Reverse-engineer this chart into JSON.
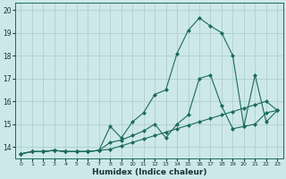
{
  "xlabel": "Humidex (Indice chaleur)",
  "background_color": "#cde8e8",
  "line_color": "#1a6b5a",
  "grid_color": "#b0d0d0",
  "xlim": [
    -0.5,
    23.5
  ],
  "ylim": [
    13.5,
    20.3
  ],
  "xticks": [
    0,
    1,
    2,
    3,
    4,
    5,
    6,
    7,
    8,
    9,
    10,
    11,
    12,
    13,
    14,
    15,
    16,
    17,
    18,
    19,
    20,
    21,
    22,
    23
  ],
  "yticks": [
    14,
    15,
    16,
    17,
    18,
    19,
    20
  ],
  "line1_x": [
    0,
    1,
    2,
    3,
    4,
    5,
    6,
    7,
    8,
    9,
    10,
    11,
    12,
    13,
    14,
    15,
    16,
    17,
    18,
    19,
    20,
    21,
    22,
    23
  ],
  "line1_y": [
    13.7,
    13.8,
    13.8,
    13.85,
    13.8,
    13.8,
    13.8,
    13.85,
    14.9,
    14.4,
    15.1,
    15.5,
    16.3,
    16.5,
    18.1,
    19.1,
    19.65,
    19.3,
    19.0,
    18.0,
    14.9,
    15.0,
    15.5,
    15.6
  ],
  "line2_x": [
    0,
    1,
    2,
    3,
    4,
    5,
    6,
    7,
    8,
    9,
    10,
    11,
    12,
    13,
    14,
    15,
    16,
    17,
    18,
    19,
    20,
    21,
    22,
    23
  ],
  "line2_y": [
    13.7,
    13.8,
    13.8,
    13.85,
    13.8,
    13.8,
    13.8,
    13.85,
    14.2,
    14.3,
    14.5,
    14.7,
    15.0,
    14.4,
    15.0,
    15.4,
    17.0,
    17.15,
    15.8,
    14.8,
    14.9,
    17.15,
    15.1,
    15.6
  ],
  "line3_x": [
    0,
    1,
    2,
    3,
    4,
    5,
    6,
    7,
    8,
    9,
    10,
    11,
    12,
    13,
    14,
    15,
    16,
    17,
    18,
    19,
    20,
    21,
    22,
    23
  ],
  "line3_y": [
    13.7,
    13.8,
    13.8,
    13.85,
    13.8,
    13.8,
    13.8,
    13.85,
    13.9,
    14.05,
    14.2,
    14.35,
    14.5,
    14.65,
    14.8,
    14.95,
    15.1,
    15.25,
    15.4,
    15.55,
    15.7,
    15.85,
    16.0,
    15.6
  ]
}
